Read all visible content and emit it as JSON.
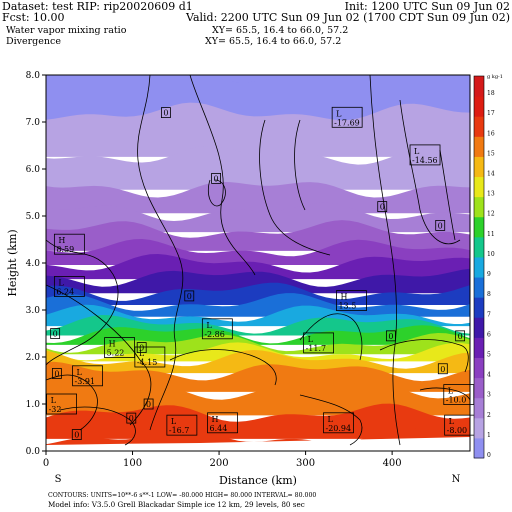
{
  "header": {
    "dataset": "Dataset: test  RIP: rip20020609 d1",
    "init": "Init: 1200 UTC Sun 09 Jun 02",
    "fcst": "Fcst:    10.00",
    "valid": "Valid: 2200 UTC Sun 09 Jun 02 (1700 CDT Sun 09 Jun 02)",
    "field1": "Water vapor mixing ratio",
    "xy1": "XY=  65.5, 16.4 to  66.0, 57.2",
    "field2": "Divergence",
    "xy2": "XY=  65.5, 16.4 to  66.0, 57.2"
  },
  "footer": {
    "direction_left": "S",
    "direction_right": "N",
    "contours": "CONTOURS:  UNITS=10**-6 s**-1   LOW=  -80.000      HIGH=  80.000      INTERVAL=  80.000",
    "model_info": "Model info: V3.5.0   Grell      Blackadar  Simple ice      12 km,   29 levels,     80 sec"
  },
  "chart_data": {
    "type": "heatmap",
    "title": "Water vapor mixing ratio",
    "xlabel": "Distance (km)",
    "ylabel": "Height (km)",
    "xlim": [
      0,
      490
    ],
    "ylim": [
      0,
      8
    ],
    "x_ticks": [
      0,
      100,
      200,
      300,
      400
    ],
    "y_ticks": [
      0.0,
      1.0,
      2.0,
      3.0,
      4.0,
      5.0,
      6.0,
      7.0,
      8.0
    ],
    "colorbar": {
      "unit": "g kg-1",
      "levels": [
        0,
        1,
        2,
        3,
        4,
        5,
        6,
        7,
        8,
        9,
        10,
        11,
        12,
        13,
        14,
        15,
        16,
        17,
        18
      ],
      "colors": [
        "#8f8ff0",
        "#b7a3e3",
        "#a77fd6",
        "#9a5ec9",
        "#8a3fc0",
        "#6a1fb3",
        "#3f18a8",
        "#1c3cc0",
        "#1a6fd8",
        "#19a9e0",
        "#14c78b",
        "#2dd12b",
        "#9ee21b",
        "#e8e81a",
        "#f5b914",
        "#f07a12",
        "#e83a10",
        "#dd1d12",
        "#d41a1a"
      ]
    },
    "shading_by_height": [
      {
        "z": 0.3,
        "value": 16.5
      },
      {
        "z": 0.8,
        "value": 16
      },
      {
        "z": 1.3,
        "value": 15.5
      },
      {
        "z": 1.7,
        "value": 15
      },
      {
        "z": 1.95,
        "value": 14
      },
      {
        "z": 2.1,
        "value": 13
      },
      {
        "z": 2.3,
        "value": 12
      },
      {
        "z": 2.5,
        "value": 11
      },
      {
        "z": 2.7,
        "value": 10
      },
      {
        "z": 2.9,
        "value": 9
      },
      {
        "z": 3.15,
        "value": 8
      },
      {
        "z": 3.4,
        "value": 7
      },
      {
        "z": 3.7,
        "value": 6
      },
      {
        "z": 4.0,
        "value": 5
      },
      {
        "z": 4.3,
        "value": 4
      },
      {
        "z": 4.7,
        "value": 3
      },
      {
        "z": 5.1,
        "value": 2.5
      },
      {
        "z": 5.6,
        "value": 2
      },
      {
        "z": 6.3,
        "value": 1.5
      },
      {
        "z": 7.2,
        "value": 1
      },
      {
        "z": 8.0,
        "value": 0.5
      }
    ],
    "annotations": [
      {
        "x": 138,
        "z": 7.2,
        "label": "0"
      },
      {
        "x": 333,
        "z": 7.1,
        "label": "L",
        "value": "-17.69"
      },
      {
        "x": 423,
        "z": 6.3,
        "label": "L",
        "value": "-14.56"
      },
      {
        "x": 196,
        "z": 5.8,
        "label": "0"
      },
      {
        "x": 388,
        "z": 5.2,
        "label": "0"
      },
      {
        "x": 455,
        "z": 4.8,
        "label": "0"
      },
      {
        "x": 12,
        "z": 4.4,
        "label": "H",
        "value": "8.59"
      },
      {
        "x": 12,
        "z": 3.5,
        "label": "L",
        "value": "6.24"
      },
      {
        "x": 165,
        "z": 3.3,
        "label": "0"
      },
      {
        "x": 338,
        "z": 3.2,
        "label": "H",
        "value": "13.5"
      },
      {
        "x": 183,
        "z": 2.6,
        "label": "L",
        "value": "-2.86"
      },
      {
        "x": 10,
        "z": 2.5,
        "label": "0"
      },
      {
        "x": 398,
        "z": 2.45,
        "label": "0"
      },
      {
        "x": 478,
        "z": 2.45,
        "label": "0"
      },
      {
        "x": 70,
        "z": 2.2,
        "label": "H",
        "value": "5.22"
      },
      {
        "x": 300,
        "z": 2.3,
        "label": "L",
        "value": "-11.7"
      },
      {
        "x": 110,
        "z": 2.2,
        "label": "0"
      },
      {
        "x": 105,
        "z": 2.0,
        "label": "L",
        "value": "-4.15"
      },
      {
        "x": 12,
        "z": 1.65,
        "label": "0"
      },
      {
        "x": 33,
        "z": 1.6,
        "label": "L",
        "value": "-3.91"
      },
      {
        "x": 458,
        "z": 1.75,
        "label": "0"
      },
      {
        "x": 462,
        "z": 1.2,
        "label": "L",
        "value": "-10.0"
      },
      {
        "x": 3,
        "z": 1.0,
        "label": "L",
        "value": "-32"
      },
      {
        "x": 118,
        "z": 1.0,
        "label": "0"
      },
      {
        "x": 98,
        "z": 0.7,
        "label": "0"
      },
      {
        "x": 189,
        "z": 0.6,
        "label": "H",
        "value": "6.44"
      },
      {
        "x": 142,
        "z": 0.55,
        "label": "L",
        "value": "-16.7"
      },
      {
        "x": 323,
        "z": 0.6,
        "label": "L",
        "value": "-20.94"
      },
      {
        "x": 463,
        "z": 0.55,
        "label": "L",
        "value": "-8.00"
      },
      {
        "x": 35,
        "z": 0.35,
        "label": "0"
      }
    ]
  }
}
